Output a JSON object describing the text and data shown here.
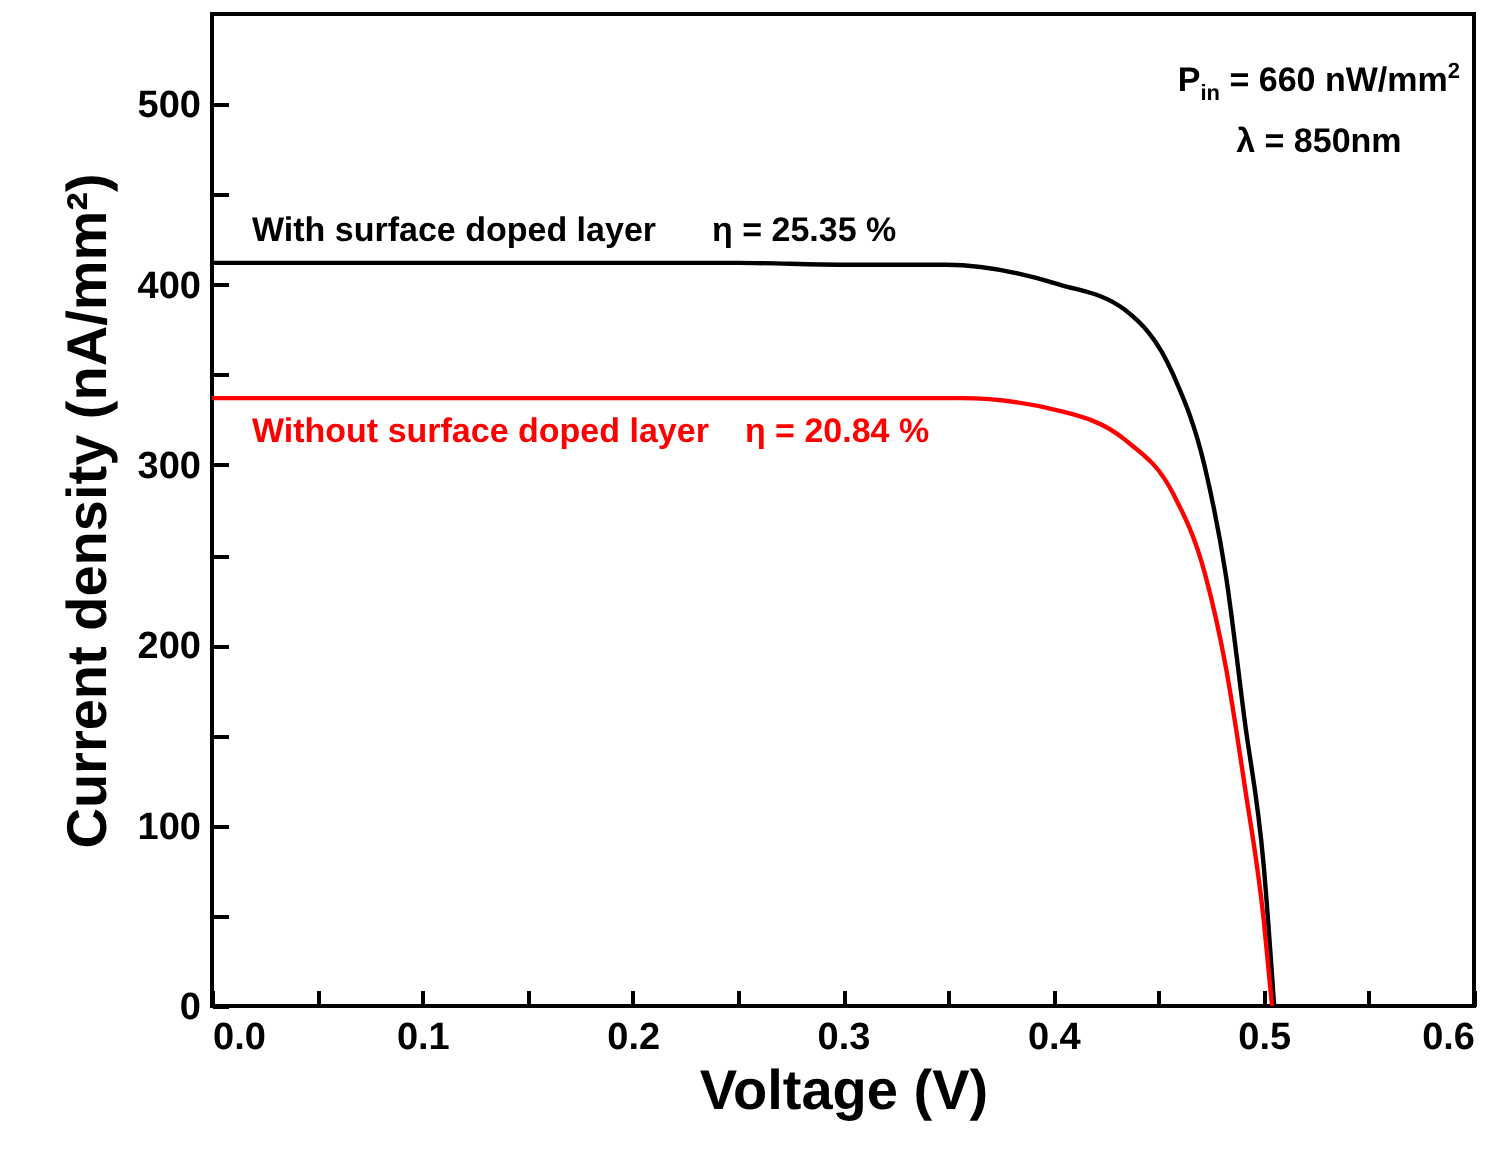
{
  "chart_data": {
    "type": "line",
    "xlabel": "Voltage (V)",
    "ylabel": "Current density (nA/mm²)",
    "xlim": [
      0,
      0.6
    ],
    "ylim": [
      0,
      550
    ],
    "xticks": [
      {
        "value": 0,
        "label": "0.0"
      },
      {
        "value": 0.05,
        "label": null
      },
      0.1,
      {
        "value": 0.15,
        "label": null
      },
      0.2,
      {
        "value": 0.25,
        "label": null
      },
      0.3,
      {
        "value": 0.35,
        "label": null
      },
      0.4,
      {
        "value": 0.45,
        "label": null
      },
      0.5,
      {
        "value": 0.55,
        "label": null
      },
      0.6
    ],
    "yticks": [
      0,
      {
        "value": 50,
        "label": null
      },
      100,
      {
        "value": 150,
        "label": null
      },
      200,
      {
        "value": 250,
        "label": null
      },
      300,
      {
        "value": 350,
        "label": null
      },
      400,
      {
        "value": 450,
        "label": null
      },
      500
    ],
    "grid": false,
    "marker": "none",
    "line_style": "solid",
    "series": [
      {
        "name": "With surface doped layer",
        "color": "#000000",
        "x": [
          0,
          0.1,
          0.2,
          0.25,
          0.3,
          0.349,
          0.403,
          0.434,
          0.457,
          0.472,
          0.482,
          0.491,
          0.5,
          0.505
        ],
        "values": [
          412,
          412,
          412,
          412,
          411,
          411,
          400,
          386,
          350,
          299,
          239,
          158,
          78,
          0
        ]
      },
      {
        "name": "Without surface doped layer",
        "color": "#ff0000",
        "x": [
          0,
          0.1,
          0.2,
          0.3,
          0.356,
          0.403,
          0.434,
          0.457,
          0.472,
          0.482,
          0.491,
          0.5,
          0.504
        ],
        "values": [
          337,
          337,
          337,
          337,
          337,
          330,
          314,
          284,
          240,
          188,
          122,
          48,
          0
        ]
      }
    ],
    "annotations": [
      "η = 25.35 %",
      "η = 20.84 %",
      "P$_{in}$ = 660 nW/mm$^{2}$",
      "λ = 850nm"
    ]
  }
}
